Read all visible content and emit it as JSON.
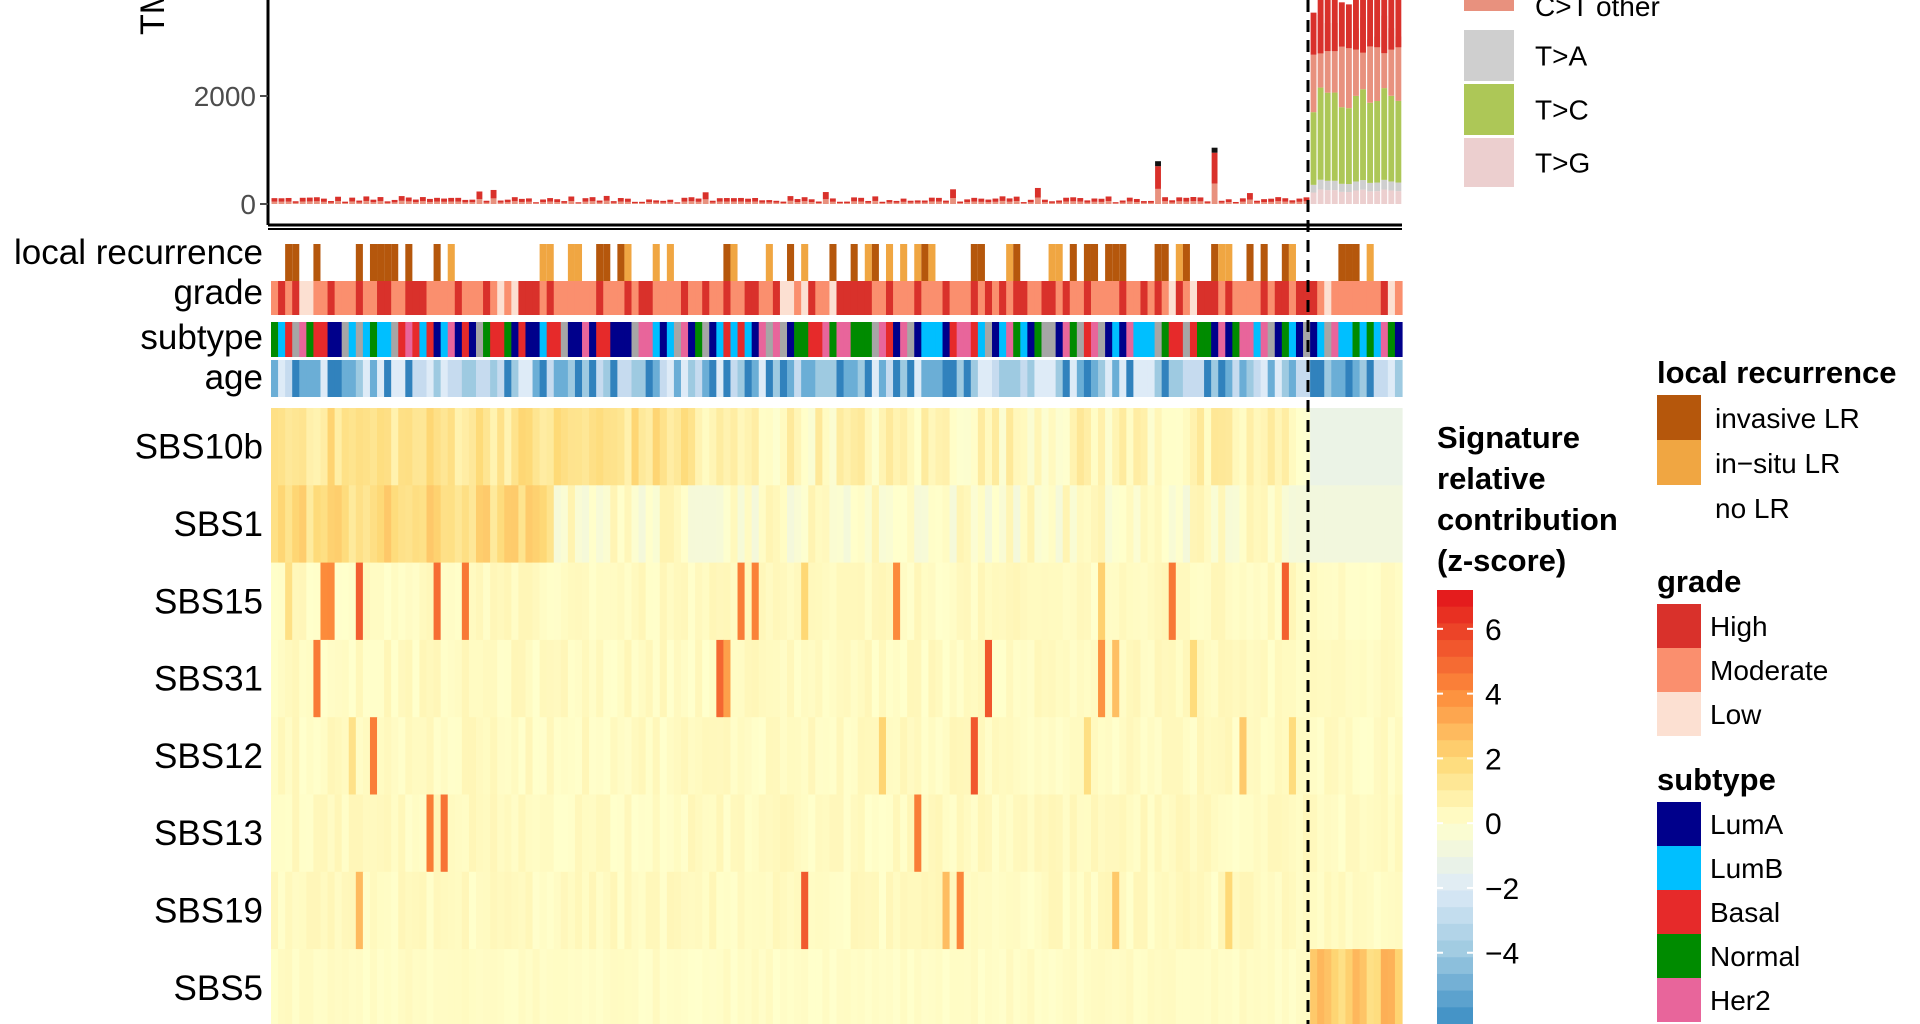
{
  "chart_data": {
    "type": "heatmap",
    "tmb_barplot": {
      "ylabel": "TM",
      "yticks": [
        0,
        2000
      ],
      "legend": [
        {
          "label": "C>T other",
          "color": "#e8917e"
        },
        {
          "label": "T>A",
          "color": "#cfcfcf"
        },
        {
          "label": "T>C",
          "color": "#adc757"
        },
        {
          "label": "T>G",
          "color": "#eccfcf"
        }
      ]
    },
    "annotations": [
      {
        "label": "local recurrence",
        "key": "local_recurrence"
      },
      {
        "label": "grade",
        "key": "grade"
      },
      {
        "label": "subtype",
        "key": "subtype"
      },
      {
        "label": "age",
        "key": "age"
      }
    ],
    "signatures": [
      "SBS10b",
      "SBS1",
      "SBS15",
      "SBS31",
      "SBS12",
      "SBS13",
      "SBS19",
      "SBS5"
    ],
    "colorbar": {
      "title": [
        "Signature",
        "relative",
        "contribution",
        "(z-score)"
      ],
      "ticks": [
        6,
        4,
        2,
        0,
        -2,
        -4
      ],
      "tick_labels": [
        "6",
        "4",
        "2",
        "0",
        "−2",
        "−4"
      ],
      "colors": [
        "#4292c6",
        "#9ecae1",
        "#deebf7",
        "#ffffcc",
        "#fed976",
        "#fd8d3c",
        "#e31a1c"
      ]
    },
    "legends": [
      {
        "title": "local recurrence",
        "items": [
          {
            "label": "invasive LR",
            "color": "#b5570c"
          },
          {
            "label": "in−situ LR",
            "color": "#f0a642"
          },
          {
            "label": "no LR",
            "color": "#ffffff"
          }
        ]
      },
      {
        "title": "grade",
        "items": [
          {
            "label": "High",
            "color": "#d9312b"
          },
          {
            "label": "Moderate",
            "color": "#fa8f6e"
          },
          {
            "label": "Low",
            "color": "#fce0d2"
          }
        ]
      },
      {
        "title": "subtype",
        "items": [
          {
            "label": "LumA",
            "color": "#00008b"
          },
          {
            "label": "LumB",
            "color": "#00bfff"
          },
          {
            "label": "Basal",
            "color": "#e62a2a"
          },
          {
            "label": "Normal",
            "color": "#008b00"
          },
          {
            "label": "Her2",
            "color": "#e8659b"
          }
        ]
      }
    ],
    "divider": "dashed vertical line separating the rightmost group of samples"
  }
}
